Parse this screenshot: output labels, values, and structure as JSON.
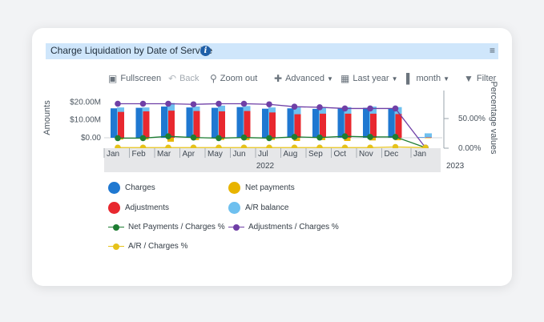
{
  "header": {
    "title": "Charge Liquidation by Date of Service",
    "info_icon": "info-icon",
    "menu_icon": "hamburger-menu-icon"
  },
  "toolbar": {
    "fullscreen": "Fullscreen",
    "back": "Back",
    "zoom_out": "Zoom out",
    "advanced": "Advanced",
    "period": "Last year",
    "granularity": "month",
    "filter": "Filter"
  },
  "chart_data": {
    "type": "bar",
    "categories": [
      "Jan",
      "Feb",
      "Mar",
      "Apr",
      "May",
      "Jun",
      "Jul",
      "Aug",
      "Sep",
      "Oct",
      "Nov",
      "Dec",
      "Jan"
    ],
    "x_group_labels": [
      "2022",
      "2023"
    ],
    "ylabel": "Amounts",
    "y2label": "Percentage values",
    "y_ticks": [
      "$20.00M",
      "$10.00M",
      "$0.00"
    ],
    "y2_ticks": [
      "50.00%",
      "0.00%"
    ],
    "ylim": [
      -2,
      24
    ],
    "y2lim": [
      0,
      100
    ],
    "series": [
      {
        "name": "Charges",
        "kind": "bar",
        "color": "#1f78d1",
        "values": [
          16.5,
          16.8,
          17.5,
          17.0,
          16.8,
          17.2,
          16.3,
          16.5,
          16.2,
          16.8,
          16.8,
          16.5,
          0.3
        ]
      },
      {
        "name": "Net payments",
        "kind": "bar",
        "color": "#e8b400",
        "values": [
          -1.0,
          -1.0,
          -2.2,
          -1.3,
          -1.2,
          -1.3,
          -1.2,
          -1.8,
          -1.3,
          -1.8,
          -1.5,
          -1.4,
          -0.2
        ]
      },
      {
        "name": "Adjustments",
        "kind": "bar",
        "color": "#e8282f",
        "values": [
          14.5,
          14.8,
          15.2,
          15.0,
          14.8,
          15.0,
          14.2,
          13.2,
          13.5,
          13.5,
          13.5,
          13.3,
          0.2
        ]
      },
      {
        "name": "A/R balance",
        "kind": "bar",
        "color": "#6ec0ef",
        "values": [
          17.0,
          17.0,
          19.5,
          17.5,
          18.0,
          17.8,
          17.0,
          17.0,
          16.8,
          17.2,
          17.5,
          17.2,
          2.5
        ]
      },
      {
        "name": "Net Payments / Charges %",
        "kind": "line",
        "color": "#1e7d32",
        "values": [
          17,
          17,
          20,
          18,
          17,
          18,
          17,
          19,
          18,
          20,
          19,
          19,
          1
        ]
      },
      {
        "name": "Adjustments / Charges %",
        "kind": "line",
        "color": "#6f3fa6",
        "values": [
          75,
          75,
          75,
          74,
          75,
          75,
          74,
          70,
          69,
          67,
          67,
          67,
          1
        ]
      },
      {
        "name": "A/R / Charges %",
        "kind": "line",
        "color": "#e6c21a",
        "values": [
          1,
          1,
          1,
          1,
          1,
          1,
          1,
          1,
          1,
          1,
          1,
          2,
          1
        ]
      }
    ],
    "legend_position": "bottom",
    "grid": false
  }
}
